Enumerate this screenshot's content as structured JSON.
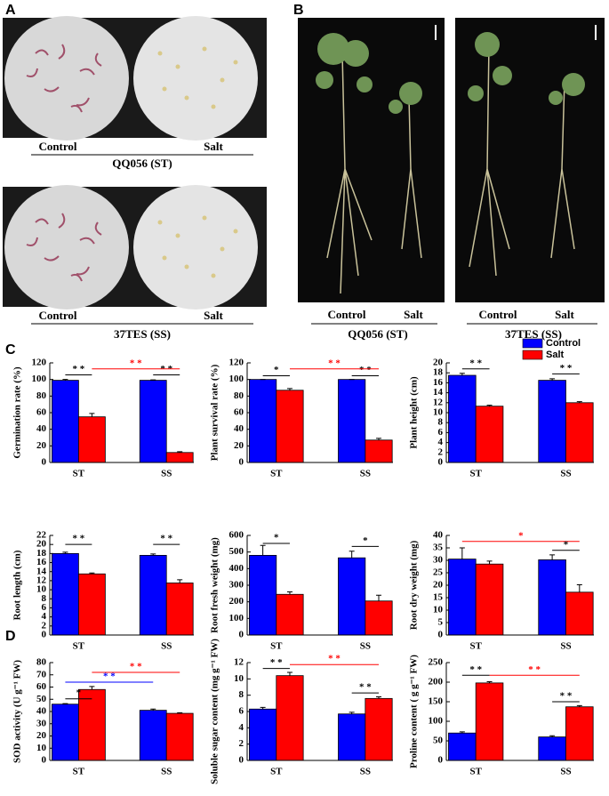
{
  "panel_a": {
    "label": "A",
    "groups": [
      {
        "control": "Control",
        "salt": "Salt",
        "line": "QQ056 (ST)"
      },
      {
        "control": "Control",
        "salt": "Salt",
        "line": "37TES (SS)"
      }
    ]
  },
  "panel_b": {
    "label": "B",
    "groups": [
      {
        "control": "Control",
        "salt": "Salt",
        "line": "QQ056 (ST)"
      },
      {
        "control": "Control",
        "salt": "Salt",
        "line": "37TES (SS)"
      }
    ]
  },
  "panel_c": {
    "label": "C"
  },
  "panel_d": {
    "label": "D"
  },
  "chart_data": [
    {
      "type": "bar",
      "ylabel": "Germination rate (%)",
      "categories": [
        "ST",
        "SS"
      ],
      "ylim": [
        0,
        120
      ],
      "yticks": [
        0,
        20,
        40,
        60,
        80,
        100,
        120
      ],
      "series": [
        {
          "name": "Control",
          "color": "#0000ff",
          "values": [
            99,
            99
          ],
          "errors": [
            1,
            0.5
          ]
        },
        {
          "name": "Salt",
          "color": "#ff0000",
          "values": [
            55,
            12
          ],
          "errors": [
            4,
            1
          ]
        }
      ],
      "annotations": [
        {
          "text": "* *",
          "color": "#000000"
        },
        {
          "text": "* *",
          "color": "#000000"
        },
        {
          "text": "* *",
          "color": "#ff0000"
        }
      ]
    },
    {
      "type": "bar",
      "ylabel": "Plant survival rate (%)",
      "categories": [
        "ST",
        "SS"
      ],
      "ylim": [
        0,
        120
      ],
      "yticks": [
        0,
        20,
        40,
        60,
        80,
        100,
        120
      ],
      "series": [
        {
          "name": "Control",
          "color": "#0000ff",
          "values": [
            100,
            100
          ],
          "errors": [
            0,
            0
          ]
        },
        {
          "name": "Salt",
          "color": "#ff0000",
          "values": [
            87,
            27
          ],
          "errors": [
            2,
            2
          ]
        }
      ],
      "annotations": [
        {
          "text": "*",
          "color": "#000000"
        },
        {
          "text": "* *",
          "color": "#000000"
        },
        {
          "text": "* *",
          "color": "#ff0000"
        }
      ]
    },
    {
      "type": "bar",
      "ylabel": "Plant height (cm)",
      "categories": [
        "ST",
        "SS"
      ],
      "ylim": [
        0,
        20
      ],
      "yticks": [
        0,
        2,
        4,
        6,
        8,
        10,
        12,
        14,
        16,
        18,
        20
      ],
      "legend": "upper-right",
      "series": [
        {
          "name": "Control",
          "color": "#0000ff",
          "values": [
            17.5,
            16.5
          ],
          "errors": [
            0.4,
            0.3
          ]
        },
        {
          "name": "Salt",
          "color": "#ff0000",
          "values": [
            11.3,
            12
          ],
          "errors": [
            0.2,
            0.2
          ]
        }
      ],
      "annotations": [
        {
          "text": "* *",
          "color": "#000000"
        },
        {
          "text": "* *",
          "color": "#000000"
        }
      ]
    },
    {
      "type": "bar",
      "ylabel": "Root length (cm)",
      "categories": [
        "ST",
        "SS"
      ],
      "ylim": [
        0,
        22
      ],
      "yticks": [
        0,
        2,
        4,
        6,
        8,
        10,
        12,
        14,
        16,
        18,
        20,
        22
      ],
      "series": [
        {
          "name": "Control",
          "color": "#0000ff",
          "values": [
            18,
            17.6
          ],
          "errors": [
            0.3,
            0.3
          ]
        },
        {
          "name": "Salt",
          "color": "#ff0000",
          "values": [
            13.5,
            11.5
          ],
          "errors": [
            0.2,
            0.7
          ]
        }
      ],
      "annotations": [
        {
          "text": "* *",
          "color": "#000000"
        },
        {
          "text": "* *",
          "color": "#000000"
        }
      ]
    },
    {
      "type": "bar",
      "ylabel": "Root fresh weight (mg)",
      "categories": [
        "ST",
        "SS"
      ],
      "ylim": [
        0,
        600
      ],
      "yticks": [
        0,
        100,
        200,
        300,
        400,
        500,
        600
      ],
      "series": [
        {
          "name": "Control",
          "color": "#0000ff",
          "values": [
            480,
            465
          ],
          "errors": [
            60,
            40
          ]
        },
        {
          "name": "Salt",
          "color": "#ff0000",
          "values": [
            245,
            205
          ],
          "errors": [
            15,
            35
          ]
        }
      ],
      "annotations": [
        {
          "text": "*",
          "color": "#000000"
        },
        {
          "text": "*",
          "color": "#000000"
        }
      ]
    },
    {
      "type": "bar",
      "ylabel": "Root dry weight (mg)",
      "categories": [
        "ST",
        "SS"
      ],
      "ylim": [
        0,
        40
      ],
      "yticks": [
        0,
        5,
        10,
        15,
        20,
        25,
        30,
        35,
        40
      ],
      "series": [
        {
          "name": "Control",
          "color": "#0000ff",
          "values": [
            30.5,
            30.2
          ],
          "errors": [
            4.5,
            2
          ]
        },
        {
          "name": "Salt",
          "color": "#ff0000",
          "values": [
            28.5,
            17.2
          ],
          "errors": [
            1.2,
            3
          ]
        }
      ],
      "annotations": [
        {
          "text": "*",
          "color": "#ff0000"
        },
        {
          "text": "*",
          "color": "#000000"
        }
      ]
    },
    {
      "type": "bar",
      "ylabel": "SOD activity (U g⁻¹ FW)",
      "categories": [
        "ST",
        "SS"
      ],
      "ylim": [
        0,
        80
      ],
      "yticks": [
        0,
        10,
        20,
        30,
        40,
        50,
        60,
        70,
        80
      ],
      "series": [
        {
          "name": "Control",
          "color": "#0000ff",
          "values": [
            46,
            41
          ],
          "errors": [
            0.5,
            1
          ]
        },
        {
          "name": "Salt",
          "color": "#ff0000",
          "values": [
            58,
            38.5
          ],
          "errors": [
            2.5,
            0.5
          ]
        }
      ],
      "annotations": [
        {
          "text": "*",
          "color": "#000000"
        },
        {
          "text": "* *",
          "color": "#0000ff"
        },
        {
          "text": "* *",
          "color": "#ff0000"
        }
      ]
    },
    {
      "type": "bar",
      "ylabel": "Soluble sugar content (mg g⁻¹ FW)",
      "categories": [
        "ST",
        "SS"
      ],
      "ylim": [
        0,
        12
      ],
      "yticks": [
        0,
        2,
        4,
        6,
        8,
        10,
        12
      ],
      "series": [
        {
          "name": "Control",
          "color": "#0000ff",
          "values": [
            6.3,
            5.7
          ],
          "errors": [
            0.2,
            0.2
          ]
        },
        {
          "name": "Salt",
          "color": "#ff0000",
          "values": [
            10.4,
            7.6
          ],
          "errors": [
            0.4,
            0.2
          ]
        }
      ],
      "annotations": [
        {
          "text": "* *",
          "color": "#000000"
        },
        {
          "text": "* *",
          "color": "#000000"
        },
        {
          "text": "* *",
          "color": "#ff0000"
        }
      ]
    },
    {
      "type": "bar",
      "ylabel": "Proline content ( g g⁻¹ FW)",
      "categories": [
        "ST",
        "SS"
      ],
      "ylim": [
        0,
        250
      ],
      "yticks": [
        0,
        50,
        100,
        150,
        200,
        250
      ],
      "series": [
        {
          "name": "Control",
          "color": "#0000ff",
          "values": [
            70,
            60
          ],
          "errors": [
            3,
            3
          ]
        },
        {
          "name": "Salt",
          "color": "#ff0000",
          "values": [
            198,
            137
          ],
          "errors": [
            3,
            3
          ]
        }
      ],
      "annotations": [
        {
          "text": "* *",
          "color": "#000000"
        },
        {
          "text": "* *",
          "color": "#000000"
        },
        {
          "text": "* *",
          "color": "#ff0000"
        }
      ]
    }
  ]
}
